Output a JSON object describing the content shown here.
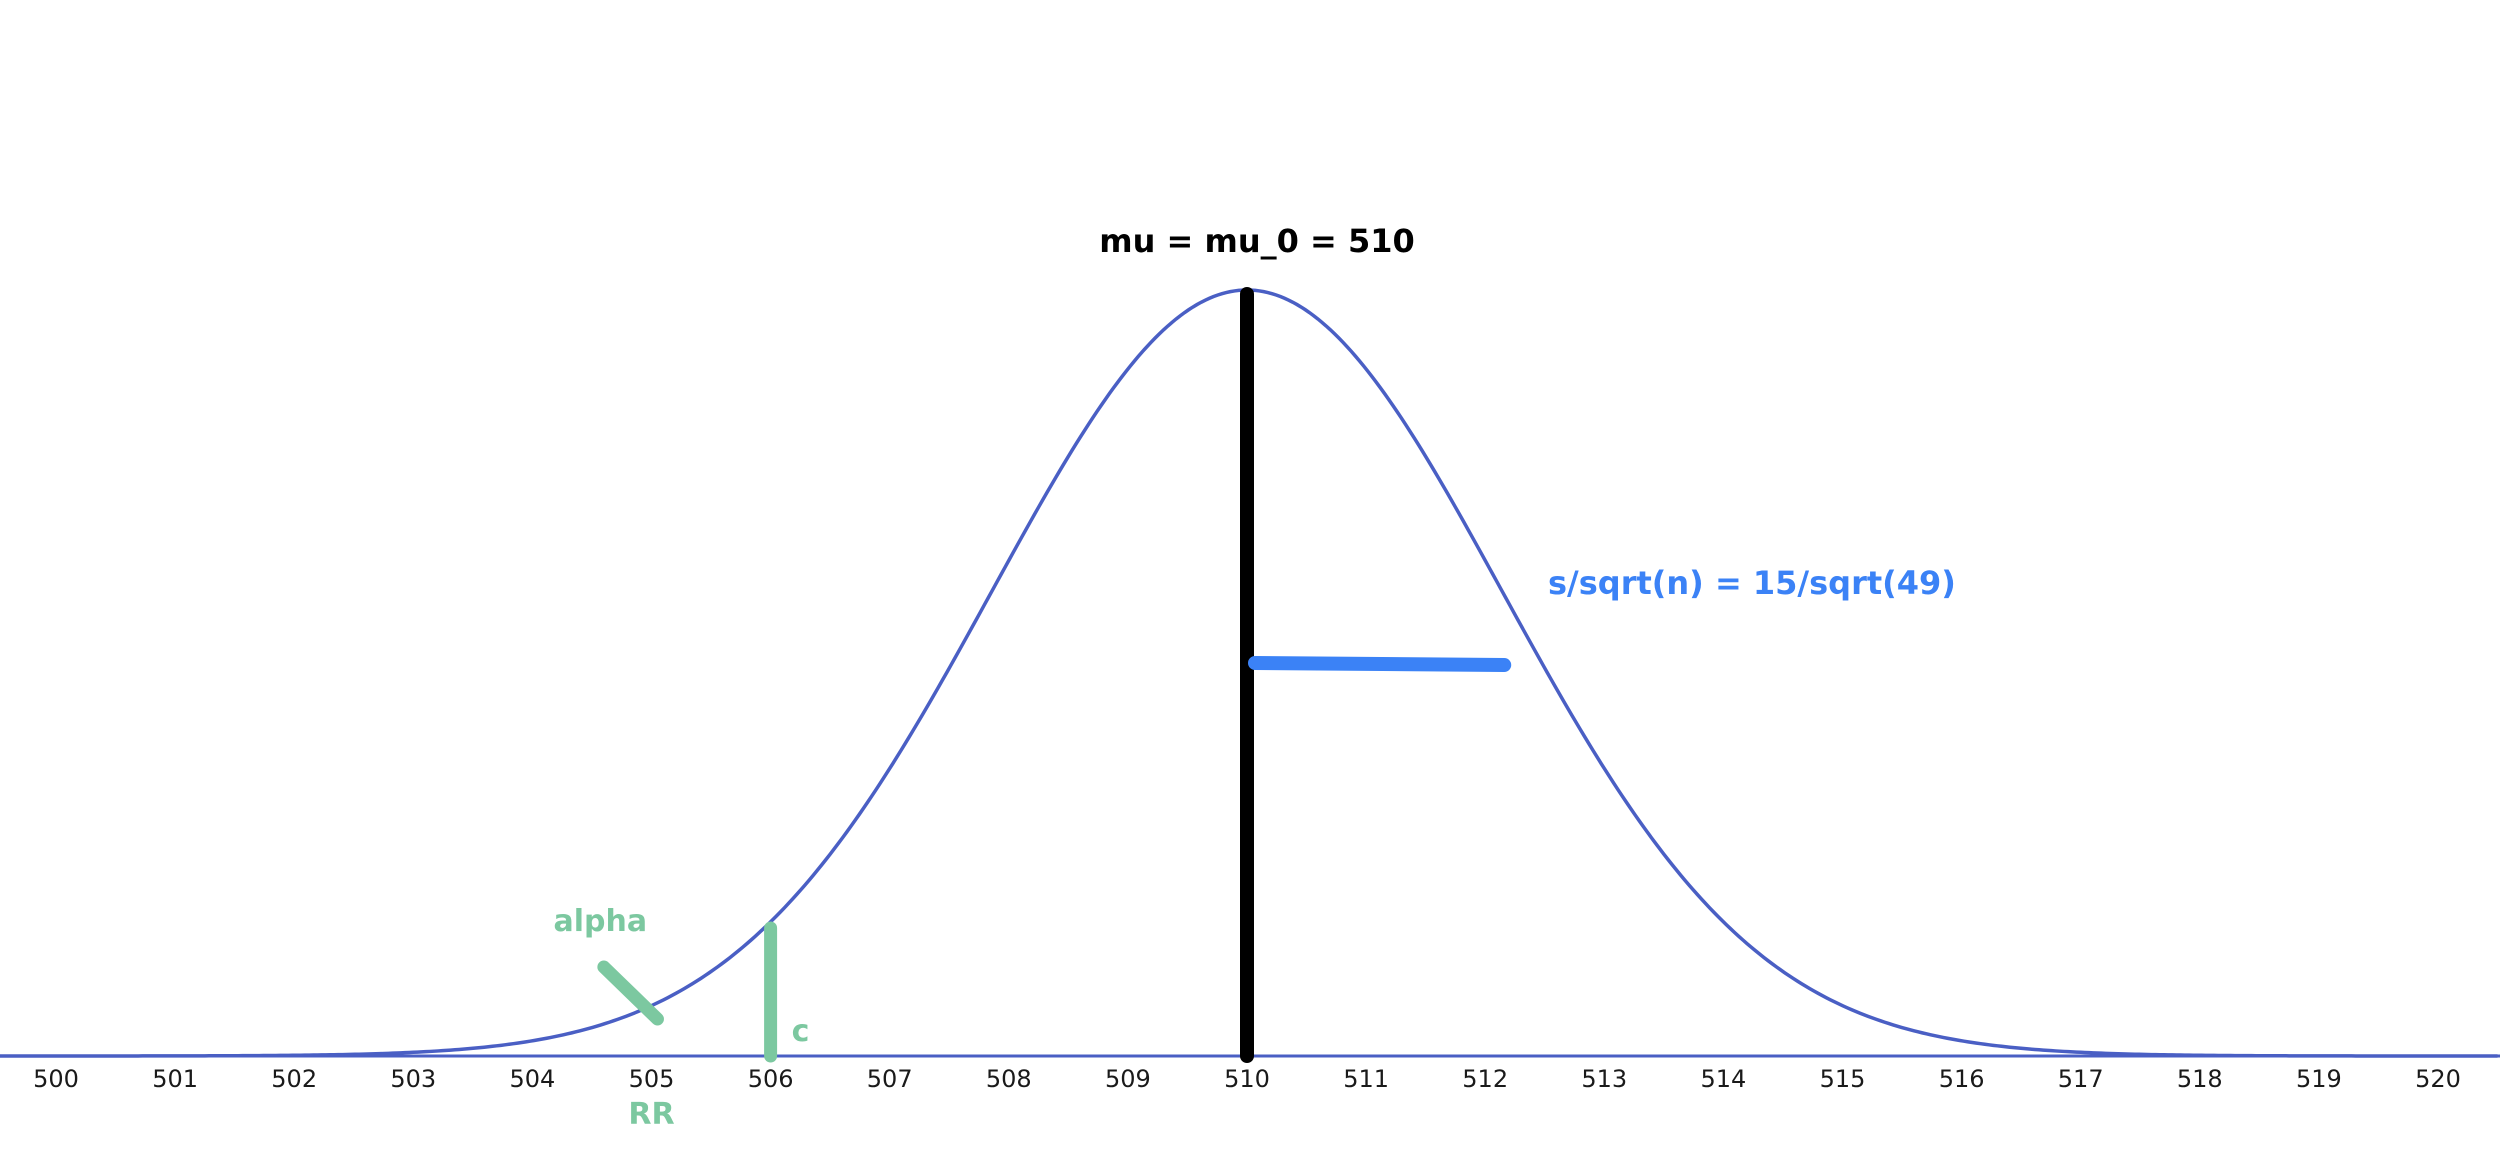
{
  "colors": {
    "curve": "#4a5fc4",
    "mean_line": "#000000",
    "se_line": "#3b82f6",
    "green": "#7cc8a0",
    "axis": "#4a5fc4",
    "tick_text": "#1a1a1a"
  },
  "diagram": {
    "x_range": [
      500,
      520
    ],
    "ticks": [
      "500",
      "501",
      "502",
      "503",
      "504",
      "505",
      "506",
      "507",
      "508",
      "509",
      "510",
      "511",
      "512",
      "513",
      "514",
      "515",
      "516",
      "517",
      "518",
      "519",
      "520"
    ],
    "mean_value": 510,
    "sd_value": 2.143,
    "critical_value": 506,
    "mean_label": "mu = mu_0 = 510",
    "se_label": "s/sqrt(n) = 15/sqrt(49)",
    "alpha_label": "alpha",
    "c_label": "c",
    "rr_label": "RR"
  }
}
